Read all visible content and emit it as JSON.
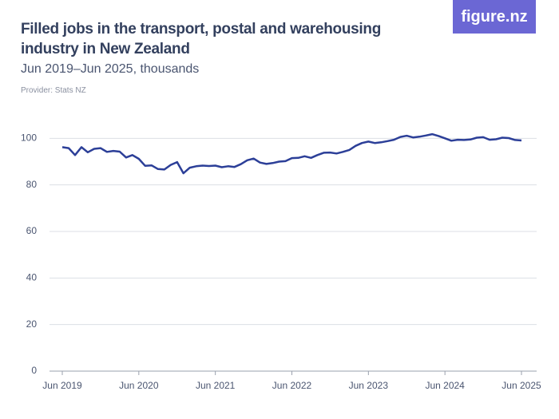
{
  "chart_data": {
    "type": "line",
    "title": "Filled jobs in the transport, postal and warehousing industry in New Zealand",
    "subtitle": "Jun 2019–Jun 2025, thousands",
    "provider": "Provider: Stats NZ",
    "logo": "figure.nz",
    "categories": [
      "Jun 2019",
      null,
      null,
      null,
      null,
      null,
      null,
      null,
      null,
      null,
      null,
      null,
      "Jun 2020",
      null,
      null,
      null,
      null,
      null,
      null,
      null,
      null,
      null,
      null,
      null,
      "Jun 2021",
      null,
      null,
      null,
      null,
      null,
      null,
      null,
      null,
      null,
      null,
      null,
      "Jun 2022",
      null,
      null,
      null,
      null,
      null,
      null,
      null,
      null,
      null,
      null,
      null,
      "Jun 2023",
      null,
      null,
      null,
      null,
      null,
      null,
      null,
      null,
      null,
      null,
      null,
      "Jun 2024",
      null,
      null,
      null,
      null,
      null,
      null,
      null,
      null,
      null,
      null,
      null,
      "Jun 2025"
    ],
    "series": [
      {
        "name": "Filled jobs",
        "color": "#2c3f98",
        "values": [
          96.2,
          95.8,
          92.8,
          96.2,
          94,
          95.5,
          95.8,
          94.2,
          94.6,
          94.3,
          91.8,
          92.8,
          91.2,
          88.2,
          88.4,
          86.8,
          86.6,
          88.6,
          89.8,
          85,
          87.4,
          88,
          88.3,
          88.1,
          88.3,
          87.6,
          88,
          87.7,
          88.9,
          90.6,
          91.3,
          89.6,
          89,
          89.4,
          90,
          90.2,
          91.5,
          91.6,
          92.3,
          91.6,
          92.8,
          93.8,
          93.9,
          93.5,
          94.2,
          95,
          96.8,
          98,
          98.6,
          98,
          98.3,
          98.8,
          99.4,
          100.6,
          101.1,
          100.4,
          100.7,
          101.2,
          101.8,
          101,
          100,
          99,
          99.4,
          99.3,
          99.5,
          100.3,
          100.5,
          99.4,
          99.6,
          100.3,
          100.1,
          99.3,
          99.1
        ]
      }
    ],
    "ylim": [
      0,
      108
    ],
    "yticks": [
      0,
      20,
      40,
      60,
      80,
      100
    ],
    "grid": true
  }
}
